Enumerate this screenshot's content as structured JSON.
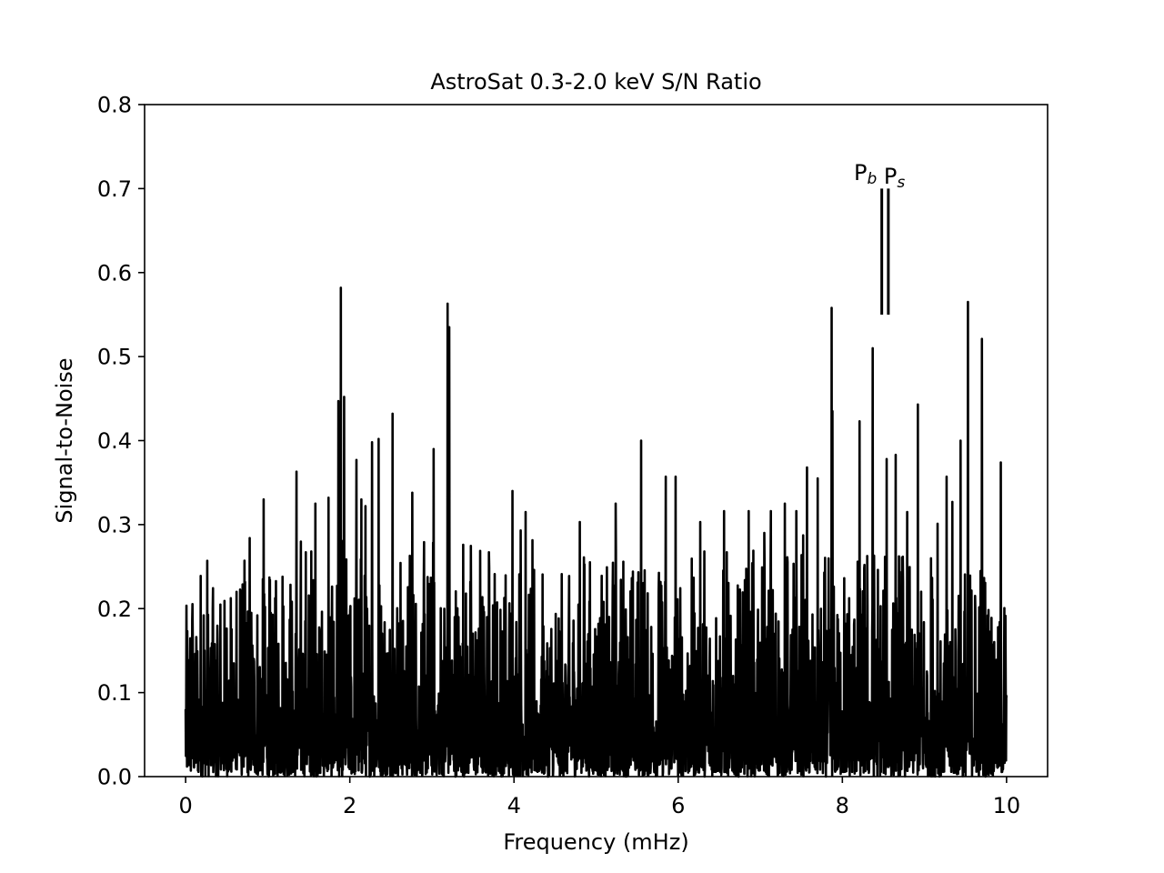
{
  "chart_data": {
    "type": "line",
    "title": "AstroSat 0.3-2.0 keV S/N Ratio",
    "xlabel": "Frequency (mHz)",
    "ylabel": "Signal-to-Noise",
    "xlim": [
      -0.5,
      10.5
    ],
    "ylim": [
      0.0,
      0.8
    ],
    "xticks": [
      "0",
      "2",
      "4",
      "6",
      "8",
      "10"
    ],
    "yticks": [
      "0.0",
      "0.1",
      "0.2",
      "0.3",
      "0.4",
      "0.5",
      "0.6",
      "0.7",
      "0.8"
    ],
    "grid": false,
    "line_color": "#000000",
    "markers": [
      {
        "label": "P",
        "subscript": "b",
        "x": 8.48,
        "y_range": [
          0.55,
          0.7
        ]
      },
      {
        "label": "P",
        "subscript": "s",
        "x": 8.56,
        "y_range": [
          0.55,
          0.7
        ]
      }
    ],
    "peaks": [
      {
        "x": 1.86,
        "y": 0.447
      },
      {
        "x": 1.89,
        "y": 0.582
      },
      {
        "x": 1.93,
        "y": 0.452
      },
      {
        "x": 3.19,
        "y": 0.563
      },
      {
        "x": 3.21,
        "y": 0.535
      },
      {
        "x": 9.53,
        "y": 0.565
      },
      {
        "x": 7.87,
        "y": 0.558
      },
      {
        "x": 9.7,
        "y": 0.521
      },
      {
        "x": 8.37,
        "y": 0.51
      },
      {
        "x": 2.52,
        "y": 0.432
      },
      {
        "x": 8.92,
        "y": 0.443
      },
      {
        "x": 7.88,
        "y": 0.435
      },
      {
        "x": 2.27,
        "y": 0.398
      },
      {
        "x": 2.35,
        "y": 0.402
      },
      {
        "x": 3.02,
        "y": 0.39
      },
      {
        "x": 5.55,
        "y": 0.4
      },
      {
        "x": 9.44,
        "y": 0.4
      },
      {
        "x": 2.08,
        "y": 0.377
      },
      {
        "x": 8.54,
        "y": 0.378
      },
      {
        "x": 8.65,
        "y": 0.383
      },
      {
        "x": 9.93,
        "y": 0.374
      },
      {
        "x": 1.35,
        "y": 0.363
      },
      {
        "x": 7.57,
        "y": 0.368
      },
      {
        "x": 5.85,
        "y": 0.357
      },
      {
        "x": 5.97,
        "y": 0.357
      },
      {
        "x": 7.7,
        "y": 0.355
      },
      {
        "x": 8.21,
        "y": 0.423
      },
      {
        "x": 9.27,
        "y": 0.357
      },
      {
        "x": 0.95,
        "y": 0.33
      },
      {
        "x": 1.58,
        "y": 0.325
      },
      {
        "x": 2.14,
        "y": 0.33
      },
      {
        "x": 1.74,
        "y": 0.332
      },
      {
        "x": 2.76,
        "y": 0.338
      },
      {
        "x": 3.98,
        "y": 0.34
      },
      {
        "x": 9.34,
        "y": 0.327
      },
      {
        "x": 5.24,
        "y": 0.325
      },
      {
        "x": 6.56,
        "y": 0.316
      },
      {
        "x": 4.14,
        "y": 0.315
      },
      {
        "x": 4.08,
        "y": 0.293
      },
      {
        "x": 0.78,
        "y": 0.284
      },
      {
        "x": 3.38,
        "y": 0.276
      },
      {
        "x": 7.13,
        "y": 0.316
      },
      {
        "x": 6.86,
        "y": 0.316
      },
      {
        "x": 7.3,
        "y": 0.325
      },
      {
        "x": 9.16,
        "y": 0.301
      },
      {
        "x": 7.44,
        "y": 0.316
      },
      {
        "x": 4.8,
        "y": 0.303
      },
      {
        "x": 6.27,
        "y": 0.303
      },
      {
        "x": 8.79,
        "y": 0.315
      },
      {
        "x": 7.05,
        "y": 0.29
      },
      {
        "x": 2.19,
        "y": 0.322
      },
      {
        "x": 1.18,
        "y": 0.238
      },
      {
        "x": 0.62,
        "y": 0.22
      },
      {
        "x": 0.33,
        "y": 0.2
      },
      {
        "x": 0.22,
        "y": 0.192
      },
      {
        "x": 0.08,
        "y": 0.186
      }
    ]
  }
}
